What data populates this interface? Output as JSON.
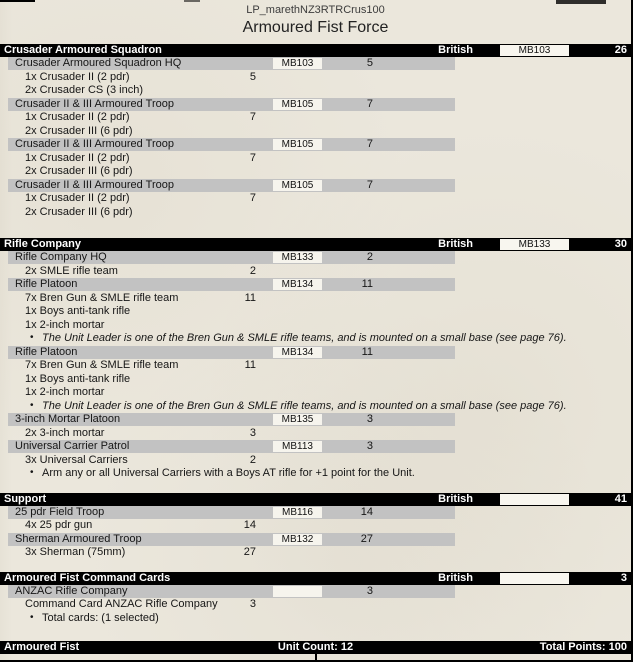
{
  "page": {
    "doc_id": "LP_marethNZ3RTRCrus100",
    "title": "Armoured Fist Force"
  },
  "colors": {
    "page_bg": "#ebe7dc",
    "section_bar": "#000000",
    "unit_bar": "#c2c2c2",
    "code_box_bg": "#f8f6ef",
    "bar_text": "#ffffff",
    "body_text": "#161616"
  },
  "icons": {
    "bullet": "•"
  },
  "sections": [
    {
      "name": "Crusader Armoured Squadron",
      "nationality": "British",
      "code_box": "MB103",
      "points": "26",
      "rows": [
        {
          "type": "unit",
          "name": "Crusader Armoured Squadron HQ",
          "code": "MB103",
          "points": "5"
        },
        {
          "type": "item",
          "name": "1x Crusader II (2 pdr)",
          "points": "5"
        },
        {
          "type": "item",
          "name": "2x Crusader CS (3 inch)",
          "points": ""
        },
        {
          "type": "unit",
          "name": "Crusader II & III Armoured Troop",
          "code": "MB105",
          "points": "7"
        },
        {
          "type": "item",
          "name": "1x Crusader II (2 pdr)",
          "points": "7"
        },
        {
          "type": "item",
          "name": "2x Crusader III (6 pdr)",
          "points": ""
        },
        {
          "type": "unit",
          "name": "Crusader II & III Armoured Troop",
          "code": "MB105",
          "points": "7"
        },
        {
          "type": "item",
          "name": "1x Crusader II (2 pdr)",
          "points": "7"
        },
        {
          "type": "item",
          "name": "2x Crusader III (6 pdr)",
          "points": ""
        },
        {
          "type": "unit",
          "name": "Crusader II & III Armoured Troop",
          "code": "MB105",
          "points": "7"
        },
        {
          "type": "item",
          "name": "1x Crusader II (2 pdr)",
          "points": "7"
        },
        {
          "type": "item",
          "name": "2x Crusader III (6 pdr)",
          "points": ""
        }
      ]
    },
    {
      "name": "Rifle Company",
      "nationality": "British",
      "code_box": "MB133",
      "points": "30",
      "rows": [
        {
          "type": "unit",
          "name": "Rifle Company HQ",
          "code": "MB133",
          "points": "2"
        },
        {
          "type": "item",
          "name": "2x SMLE rifle team",
          "points": "2"
        },
        {
          "type": "unit",
          "name": "Rifle Platoon",
          "code": "MB134",
          "points": "11"
        },
        {
          "type": "item",
          "name": "7x Bren Gun & SMLE rifle team",
          "points": "11"
        },
        {
          "type": "item",
          "name": "1x Boys anti-tank rifle",
          "points": ""
        },
        {
          "type": "item",
          "name": "1x 2-inch mortar",
          "points": ""
        },
        {
          "type": "note",
          "text": "The Unit Leader is one of the Bren Gun & SMLE rifle teams, and is mounted on a small base (see page 76).",
          "italic": true
        },
        {
          "type": "unit",
          "name": "Rifle Platoon",
          "code": "MB134",
          "points": "11"
        },
        {
          "type": "item",
          "name": "7x Bren Gun & SMLE rifle team",
          "points": "11"
        },
        {
          "type": "item",
          "name": "1x Boys anti-tank rifle",
          "points": ""
        },
        {
          "type": "item",
          "name": "1x 2-inch mortar",
          "points": ""
        },
        {
          "type": "note",
          "text": "The Unit Leader is one of the Bren Gun & SMLE rifle teams, and is mounted on a small base (see page 76).",
          "italic": true
        },
        {
          "type": "unit",
          "name": "3-inch Mortar Platoon",
          "code": "MB135",
          "points": "3"
        },
        {
          "type": "item",
          "name": "2x 3-inch mortar",
          "points": "3"
        },
        {
          "type": "unit",
          "name": "Universal Carrier Patrol",
          "code": "MB113",
          "points": "3"
        },
        {
          "type": "item",
          "name": "3x Universal Carriers",
          "points": "2"
        },
        {
          "type": "note",
          "text": "Arm any or all Universal Carriers with a Boys AT rifle for +1 point for the Unit.",
          "italic": false
        }
      ]
    },
    {
      "name": "Support",
      "nationality": "British",
      "code_box": "",
      "points": "41",
      "rows": [
        {
          "type": "unit",
          "name": "25 pdr Field Troop",
          "code": "MB116",
          "points": "14"
        },
        {
          "type": "item",
          "name": "4x 25 pdr gun",
          "points": "14"
        },
        {
          "type": "unit",
          "name": "Sherman Armoured Troop",
          "code": "MB132",
          "points": "27"
        },
        {
          "type": "item",
          "name": "3x Sherman (75mm)",
          "points": "27"
        }
      ]
    },
    {
      "name": "Armoured Fist Command Cards",
      "nationality": "British",
      "code_box": "",
      "points": "3",
      "rows": [
        {
          "type": "unit",
          "name": "ANZAC Rifle Company",
          "code": "",
          "points": "3"
        },
        {
          "type": "item",
          "name": "Command Card ANZAC Rifle Company",
          "points": "3"
        },
        {
          "type": "note",
          "text": "Total cards:  (1 selected)",
          "italic": false
        }
      ]
    }
  ],
  "footer": {
    "force_name": "Armoured Fist",
    "unit_count": "Unit Count: 12",
    "total_points": "Total Points: 100"
  }
}
